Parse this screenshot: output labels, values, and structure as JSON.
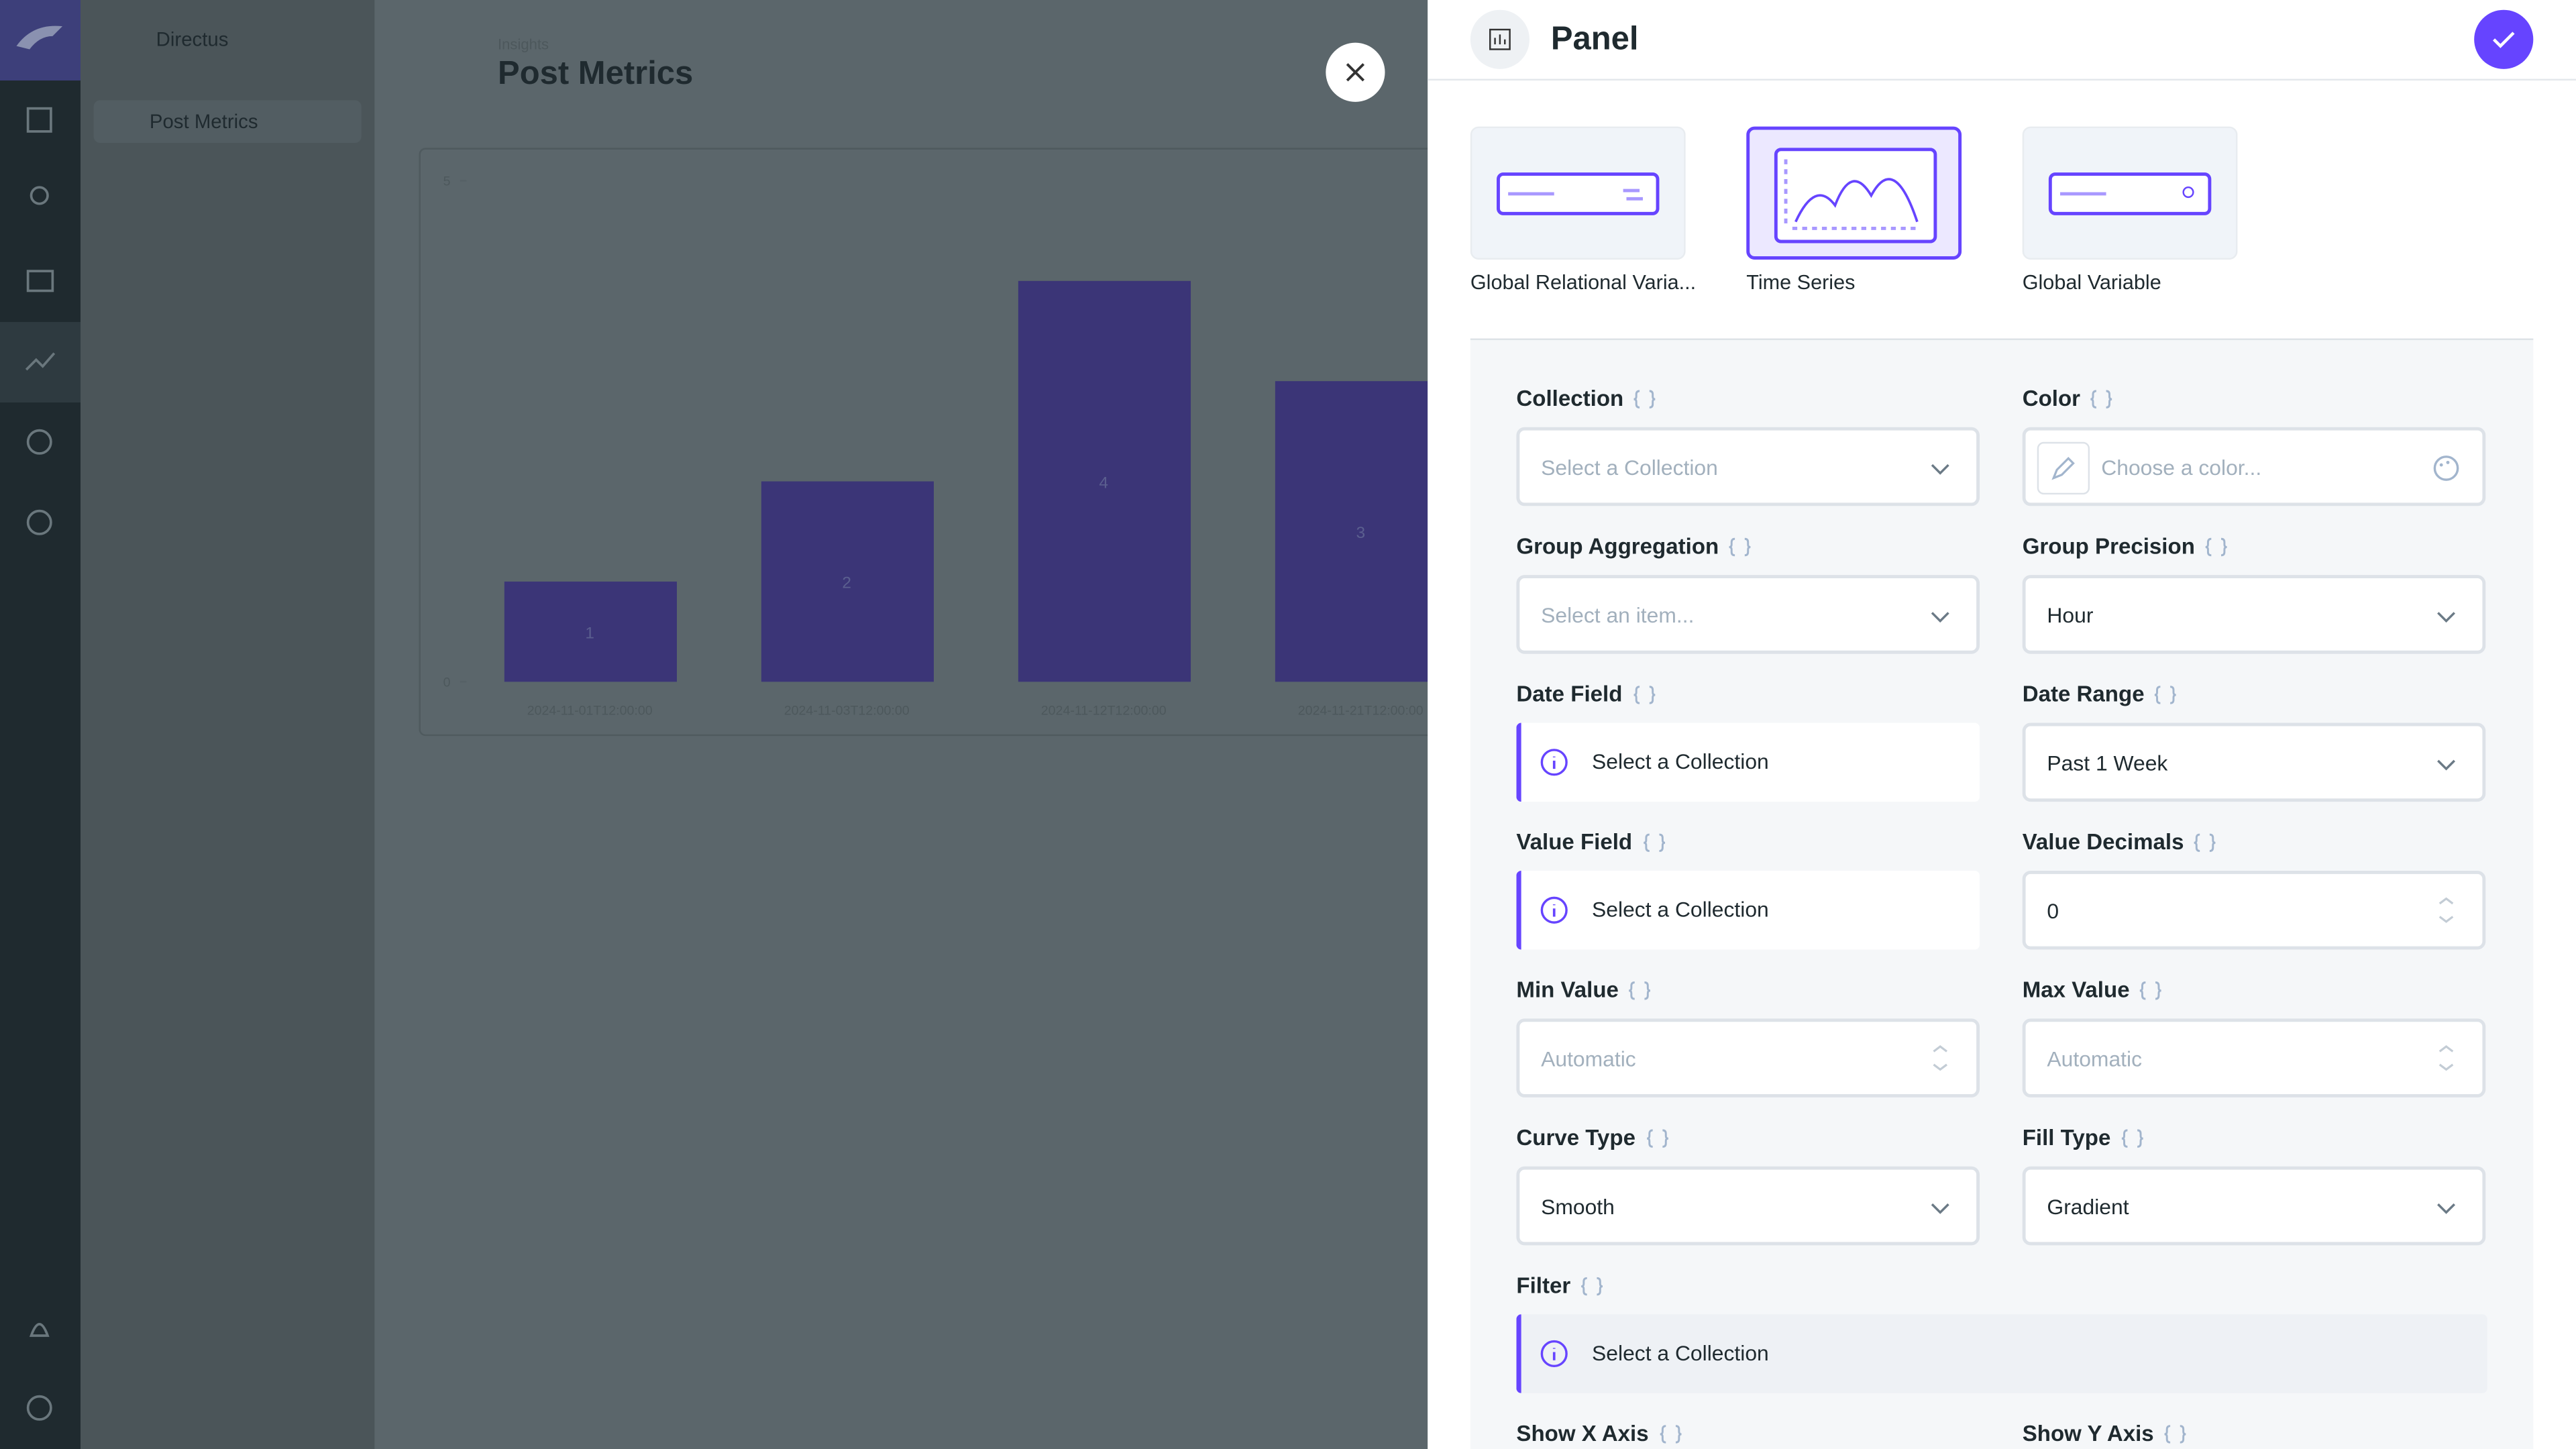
{
  "sidebar": {
    "project": "Directus",
    "nav": [
      "Post Metrics"
    ]
  },
  "header": {
    "breadcrumb": "Insights",
    "title": "Post Metrics"
  },
  "chart_data": {
    "type": "bar",
    "categories": [
      "2024-11-01T12:00:00",
      "2024-11-03T12:00:00",
      "2024-11-12T12:00:00",
      "2024-11-21T12:00:00"
    ],
    "values": [
      1,
      2,
      4,
      3
    ],
    "ylim": [
      0,
      5
    ],
    "yticks": [
      0,
      5
    ],
    "color": "#3b3577"
  },
  "drawer": {
    "title": "Panel",
    "panel_types": [
      "Global Relational Varia...",
      "Time Series",
      "Global Variable"
    ],
    "fields": [
      {
        "label": "Collection",
        "value": "Select a Collection"
      },
      {
        "label": "Color",
        "value": "Choose a color..."
      },
      {
        "label": "Group Aggregation",
        "value": "Select an item..."
      },
      {
        "label": "Group Precision",
        "value": "Hour"
      },
      {
        "label": "Date Field",
        "value": "Select a Collection"
      },
      {
        "label": "Date Range",
        "value": "Past 1 Week"
      },
      {
        "label": "Value Field",
        "value": "Select a Collection"
      },
      {
        "label": "Value Decimals",
        "value": "0"
      },
      {
        "label": "Min Value",
        "value": "Automatic"
      },
      {
        "label": "Max Value",
        "value": "Automatic"
      },
      {
        "label": "Curve Type",
        "value": "Smooth"
      },
      {
        "label": "Fill Type",
        "value": "Gradient"
      },
      {
        "label": "Filter",
        "value": "Select a Collection"
      },
      {
        "label": "Show X Axis"
      },
      {
        "label": "Show Y Axis"
      }
    ]
  }
}
